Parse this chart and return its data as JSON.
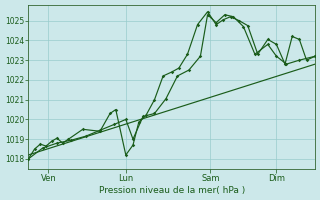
{
  "background_color": "#cce8ea",
  "grid_color": "#99cccc",
  "line_color": "#1a5c1a",
  "spine_color": "#336633",
  "title": "Pression niveau de la mer( hPa )",
  "ylim": [
    1017.5,
    1025.8
  ],
  "yticks": [
    1018,
    1019,
    1020,
    1021,
    1022,
    1023,
    1024,
    1025
  ],
  "xlim": [
    0,
    1
  ],
  "day_labels": [
    "Ven",
    "Lun",
    "Sam",
    "Dim"
  ],
  "day_positions": [
    0.07,
    0.34,
    0.635,
    0.865
  ],
  "series1_x": [
    0.0,
    0.022,
    0.042,
    0.062,
    0.082,
    0.1,
    0.12,
    0.14,
    0.19,
    0.25,
    0.285,
    0.305,
    0.34,
    0.365,
    0.385,
    0.41,
    0.44,
    0.47,
    0.5,
    0.525,
    0.555,
    0.59,
    0.625,
    0.655,
    0.68,
    0.705,
    0.735,
    0.765,
    0.8,
    0.835,
    0.865,
    0.895,
    0.92,
    0.945,
    0.97,
    1.0
  ],
  "series1_y": [
    1018.0,
    1018.5,
    1018.75,
    1018.65,
    1018.9,
    1019.05,
    1018.8,
    1019.0,
    1019.5,
    1019.4,
    1020.3,
    1020.5,
    1018.2,
    1018.7,
    1019.85,
    1020.2,
    1021.0,
    1022.2,
    1022.4,
    1022.6,
    1023.3,
    1024.8,
    1025.45,
    1024.8,
    1025.05,
    1025.2,
    1025.0,
    1024.75,
    1023.3,
    1024.05,
    1023.8,
    1022.8,
    1024.2,
    1024.05,
    1023.0,
    1023.2
  ],
  "series2_x": [
    0.0,
    0.05,
    0.1,
    0.15,
    0.2,
    0.25,
    0.3,
    0.34,
    0.365,
    0.4,
    0.44,
    0.48,
    0.52,
    0.56,
    0.6,
    0.625,
    0.655,
    0.685,
    0.715,
    0.75,
    0.79,
    0.835,
    0.865,
    0.9,
    0.945,
    1.0
  ],
  "series2_y": [
    1018.0,
    1018.55,
    1018.8,
    1018.95,
    1019.15,
    1019.45,
    1019.75,
    1020.0,
    1019.0,
    1020.15,
    1020.3,
    1021.05,
    1022.2,
    1022.5,
    1023.2,
    1025.3,
    1024.9,
    1025.3,
    1025.2,
    1024.7,
    1023.3,
    1023.8,
    1023.2,
    1022.8,
    1023.0,
    1023.2
  ],
  "trend_x": [
    0.0,
    1.0
  ],
  "trend_y": [
    1018.2,
    1022.8
  ]
}
